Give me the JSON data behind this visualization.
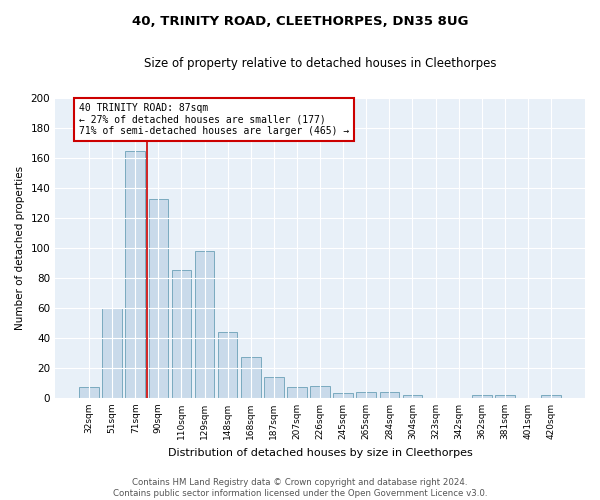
{
  "title1": "40, TRINITY ROAD, CLEETHORPES, DN35 8UG",
  "title2": "Size of property relative to detached houses in Cleethorpes",
  "xlabel": "Distribution of detached houses by size in Cleethorpes",
  "ylabel": "Number of detached properties",
  "bar_labels": [
    "32sqm",
    "51sqm",
    "71sqm",
    "90sqm",
    "110sqm",
    "129sqm",
    "148sqm",
    "168sqm",
    "187sqm",
    "207sqm",
    "226sqm",
    "245sqm",
    "265sqm",
    "284sqm",
    "304sqm",
    "323sqm",
    "342sqm",
    "362sqm",
    "381sqm",
    "401sqm",
    "420sqm"
  ],
  "bar_values": [
    7,
    60,
    165,
    133,
    85,
    98,
    44,
    27,
    14,
    7,
    8,
    3,
    4,
    4,
    2,
    0,
    0,
    2,
    2,
    0,
    2
  ],
  "bar_color": "#c9daea",
  "bar_edge_color": "#7aaabf",
  "vline_color": "#cc0000",
  "annotation_text": "40 TRINITY ROAD: 87sqm\n← 27% of detached houses are smaller (177)\n71% of semi-detached houses are larger (465) →",
  "annotation_box_color": "white",
  "annotation_box_edge": "#cc0000",
  "ylim": [
    0,
    200
  ],
  "yticks": [
    0,
    20,
    40,
    60,
    80,
    100,
    120,
    140,
    160,
    180,
    200
  ],
  "footer": "Contains HM Land Registry data © Crown copyright and database right 2024.\nContains public sector information licensed under the Open Government Licence v3.0.",
  "bg_color": "#ffffff",
  "plot_bg_color": "#e8f0f8",
  "grid_color": "#ffffff",
  "vline_bar_index": 2.5
}
